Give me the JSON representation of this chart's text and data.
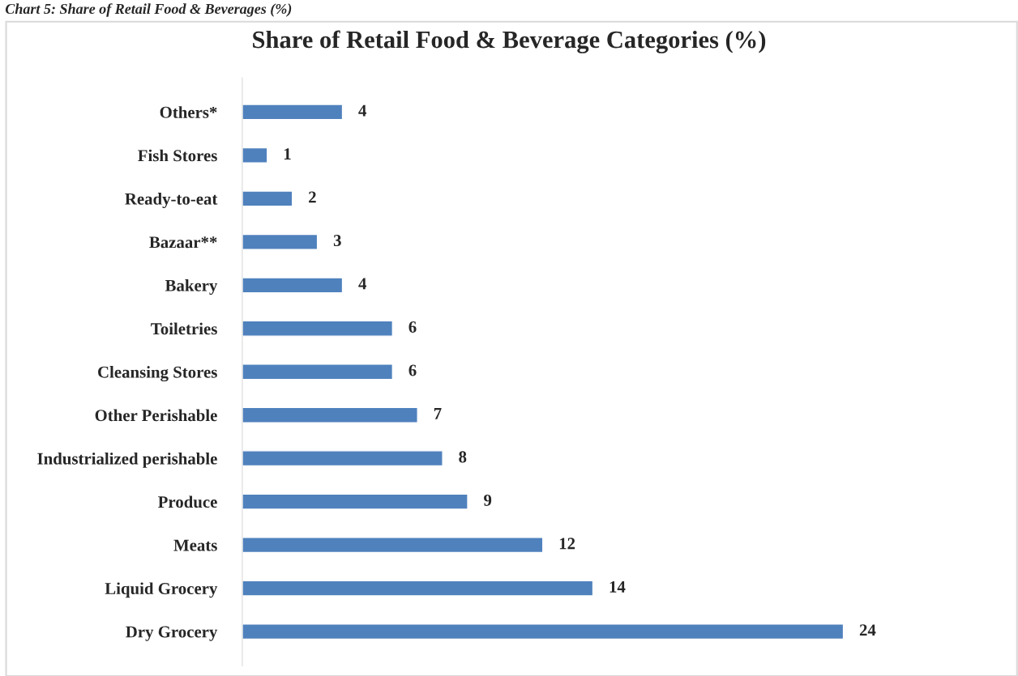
{
  "chart_data": {
    "type": "bar",
    "orientation": "horizontal",
    "title": "Share of Retail Food & Beverage Categories (%)",
    "annotations": [
      "Chart 5: Share of Retail Food & Beverages (%)"
    ],
    "categories": [
      "Others*",
      "Fish Stores",
      "Ready-to-eat",
      "Bazaar**",
      "Bakery",
      "Toiletries",
      "Cleansing Stores",
      "Other Perishable",
      "Industrialized perishable",
      "Produce",
      "Meats",
      "Liquid Grocery",
      "Dry Grocery"
    ],
    "values": [
      4,
      1,
      2,
      3,
      4,
      6,
      6,
      7,
      8,
      9,
      12,
      14,
      24
    ],
    "color": "#4f81bd",
    "data_labels": true,
    "grid": false,
    "legend": false,
    "tick_labels": "y"
  }
}
